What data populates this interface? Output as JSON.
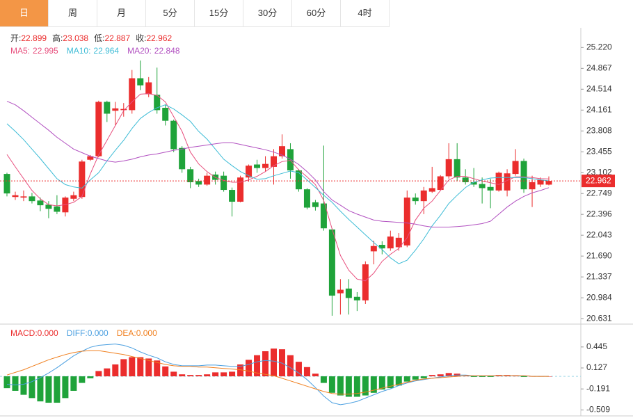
{
  "tabs": [
    "日",
    "周",
    "月",
    "5分",
    "15分",
    "30分",
    "60分",
    "4时"
  ],
  "active_tab": 0,
  "chart_data": [
    {
      "type": "candlestick",
      "ohlc_names": [
        "开:",
        "高:",
        "低:",
        "收:"
      ],
      "up_color": "#eb2d2d",
      "down_color": "#1fa33a",
      "open": [
        23.08,
        22.69,
        22.68,
        22.7,
        22.63,
        22.56,
        22.53,
        22.43,
        22.66,
        22.69,
        23.32,
        23.38,
        24.3,
        24.15,
        24.16,
        24.16,
        24.7,
        24.43,
        24.42,
        24.2,
        23.98,
        23.52,
        23.16,
        22.96,
        22.9,
        23.07,
        23.05,
        22.81,
        22.61,
        23.02,
        23.24,
        23.18,
        23.2,
        23.38,
        23.5,
        23.14,
        22.82,
        22.6,
        22.58,
        22.14,
        21.06,
        21.14,
        21.0,
        20.94,
        21.77,
        21.88,
        21.82,
        21.84,
        21.87,
        22.68,
        22.62,
        22.78,
        22.81,
        23.04,
        23.33,
        23.02,
        22.94,
        22.91,
        22.86,
        22.8,
        22.8,
        23.08,
        23.3,
        22.82,
        22.9,
        22.899
      ],
      "high": [
        23.1,
        22.78,
        22.8,
        22.76,
        22.68,
        22.62,
        22.72,
        22.7,
        22.78,
        23.32,
        23.4,
        24.32,
        24.32,
        24.3,
        24.28,
        24.84,
        25.0,
        24.72,
        24.88,
        24.26,
        24.0,
        23.55,
        23.2,
        23.0,
        23.1,
        23.12,
        23.12,
        22.85,
        23.05,
        23.24,
        23.32,
        23.38,
        23.5,
        23.75,
        23.6,
        23.16,
        22.84,
        22.64,
        23.56,
        22.16,
        21.3,
        21.3,
        21.08,
        21.6,
        21.95,
        21.94,
        22.12,
        22.08,
        22.8,
        22.75,
        22.86,
        23.2,
        23.06,
        23.6,
        23.6,
        23.16,
        23.18,
        23.02,
        23.0,
        23.12,
        23.16,
        23.5,
        23.34,
        23.05,
        23.02,
        23.038
      ],
      "low": [
        22.7,
        22.64,
        22.62,
        22.58,
        22.45,
        22.33,
        22.4,
        22.36,
        22.62,
        22.66,
        23.3,
        23.36,
        23.96,
        23.9,
        24.05,
        24.1,
        24.5,
        24.38,
        24.1,
        23.9,
        23.45,
        23.1,
        22.84,
        22.86,
        22.88,
        22.9,
        22.78,
        22.36,
        22.6,
        22.95,
        23.1,
        23.12,
        22.9,
        23.34,
        23.0,
        22.78,
        22.48,
        22.46,
        22.12,
        20.68,
        20.7,
        20.7,
        20.76,
        20.88,
        21.55,
        21.72,
        21.78,
        21.78,
        21.84,
        22.56,
        22.4,
        22.76,
        22.8,
        23.0,
        22.96,
        22.9,
        22.86,
        22.58,
        22.5,
        22.78,
        22.7,
        23.05,
        22.76,
        22.52,
        22.86,
        22.887
      ],
      "close": [
        22.75,
        22.72,
        22.7,
        22.62,
        22.55,
        22.49,
        22.44,
        22.68,
        22.72,
        23.29,
        23.38,
        24.3,
        24.1,
        24.19,
        24.18,
        24.7,
        24.58,
        24.63,
        24.16,
        23.98,
        23.5,
        23.16,
        22.94,
        22.9,
        23.05,
        22.98,
        22.81,
        22.61,
        23.02,
        23.22,
        23.18,
        23.25,
        23.38,
        23.55,
        23.14,
        22.82,
        22.51,
        22.52,
        22.16,
        21.02,
        21.12,
        20.98,
        20.94,
        21.55,
        21.86,
        21.82,
        22.02,
        22.0,
        22.68,
        22.62,
        22.8,
        22.84,
        23.04,
        23.33,
        23.02,
        22.94,
        22.9,
        22.84,
        22.8,
        23.1,
        23.09,
        23.3,
        22.82,
        22.94,
        22.98,
        22.962
      ],
      "series": [
        {
          "name": "MA5:",
          "color": "#e8507e",
          "values": [
            23.41,
            23.2,
            23.0,
            22.8,
            22.66,
            22.56,
            22.54,
            22.56,
            22.6,
            22.7,
            23.08,
            23.4,
            23.65,
            23.9,
            24.15,
            24.3,
            24.43,
            24.44,
            24.41,
            24.3,
            24.05,
            23.8,
            23.45,
            23.25,
            23.12,
            23.02,
            22.97,
            22.94,
            22.94,
            22.98,
            23.04,
            23.12,
            23.22,
            23.29,
            23.31,
            23.15,
            23.03,
            22.9,
            22.63,
            22.15,
            21.7,
            21.45,
            21.3,
            21.27,
            21.4,
            21.6,
            21.72,
            21.82,
            22.0,
            22.3,
            22.5,
            22.62,
            22.8,
            22.98,
            23.04,
            23.04,
            23.0,
            22.96,
            22.93,
            22.9,
            22.97,
            23.03,
            23.03,
            23.02,
            23.0,
            22.995
          ]
        },
        {
          "name": "MA10:",
          "color": "#3dbcd6",
          "values": [
            23.93,
            23.8,
            23.66,
            23.5,
            23.34,
            23.17,
            23.0,
            22.9,
            22.86,
            22.84,
            22.98,
            23.1,
            23.3,
            23.48,
            23.65,
            23.85,
            24.02,
            24.12,
            24.2,
            24.25,
            24.18,
            24.08,
            23.97,
            23.8,
            23.67,
            23.5,
            23.33,
            23.22,
            23.12,
            23.05,
            22.99,
            23.0,
            23.05,
            23.09,
            23.13,
            23.1,
            22.98,
            22.85,
            22.72,
            22.6,
            22.45,
            22.31,
            22.18,
            22.05,
            21.92,
            21.8,
            21.66,
            21.56,
            21.62,
            21.79,
            21.98,
            22.2,
            22.38,
            22.58,
            22.72,
            22.85,
            22.94,
            22.98,
            23.01,
            23.02,
            23.02,
            23.02,
            23.02,
            23.0,
            22.98,
            22.964
          ]
        },
        {
          "name": "MA20:",
          "color": "#b14fc0",
          "values": [
            24.31,
            24.25,
            24.15,
            24.04,
            23.93,
            23.82,
            23.7,
            23.6,
            23.5,
            23.44,
            23.38,
            23.34,
            23.3,
            23.28,
            23.3,
            23.33,
            23.37,
            23.4,
            23.42,
            23.45,
            23.48,
            23.5,
            23.53,
            23.55,
            23.57,
            23.59,
            23.61,
            23.61,
            23.58,
            23.55,
            23.52,
            23.49,
            23.45,
            23.4,
            23.33,
            23.24,
            23.12,
            22.98,
            22.78,
            22.64,
            22.55,
            22.46,
            22.4,
            22.35,
            22.3,
            22.28,
            22.27,
            22.26,
            22.25,
            22.23,
            22.2,
            22.18,
            22.18,
            22.18,
            22.19,
            22.2,
            22.22,
            22.24,
            22.28,
            22.4,
            22.52,
            22.62,
            22.7,
            22.76,
            22.8,
            22.848
          ]
        }
      ],
      "ylim": [
        20.55,
        25.53
      ],
      "yticks": [
        {
          "value": 25.22,
          "label": "25.220"
        },
        {
          "value": 24.867,
          "label": "24.867"
        },
        {
          "value": 24.514,
          "label": "24.514"
        },
        {
          "value": 24.161,
          "label": "24.161"
        },
        {
          "value": 23.808,
          "label": "23.808"
        },
        {
          "value": 23.455,
          "label": "23.455"
        },
        {
          "value": 23.102,
          "label": "23.102"
        },
        {
          "value": 22.749,
          "label": "22.749"
        },
        {
          "value": 22.396,
          "label": "22.396"
        },
        {
          "value": 22.043,
          "label": "22.043"
        },
        {
          "value": 21.69,
          "label": "21.690"
        },
        {
          "value": 21.337,
          "label": "21.337"
        },
        {
          "value": 20.984,
          "label": "20.984"
        },
        {
          "value": 20.631,
          "label": "20.631"
        }
      ]
    },
    {
      "type": "macd",
      "pos_color": "#eb2d2d",
      "neg_color": "#1fa33a",
      "series": [
        {
          "name": "MACD:",
          "type": "bar",
          "color": "#eb2d2d",
          "value_label": "0.000",
          "values": [
            -0.18,
            -0.22,
            -0.28,
            -0.33,
            -0.38,
            -0.4,
            -0.4,
            -0.33,
            -0.22,
            -0.1,
            -0.03,
            0.08,
            0.12,
            0.18,
            0.26,
            0.29,
            0.29,
            0.27,
            0.24,
            0.15,
            0.07,
            0.03,
            0.02,
            0.02,
            0.03,
            0.06,
            0.06,
            0.07,
            0.18,
            0.25,
            0.32,
            0.38,
            0.42,
            0.41,
            0.32,
            0.22,
            0.14,
            0.04,
            -0.1,
            -0.25,
            -0.29,
            -0.31,
            -0.31,
            -0.29,
            -0.25,
            -0.2,
            -0.18,
            -0.14,
            -0.08,
            -0.05,
            -0.03,
            0.02,
            0.03,
            0.05,
            0.04,
            0.01,
            -0.01,
            -0.01,
            -0.01,
            0.02,
            0.02,
            0.01,
            -0.01,
            0,
            0,
            0
          ]
        },
        {
          "name": "DIFF:",
          "type": "line",
          "color": "#4a9fe0",
          "value_label": "0.000",
          "values": [
            -0.12,
            -0.13,
            -0.12,
            -0.08,
            -0.02,
            0.05,
            0.13,
            0.22,
            0.31,
            0.38,
            0.44,
            0.47,
            0.48,
            0.49,
            0.47,
            0.43,
            0.37,
            0.32,
            0.28,
            0.22,
            0.18,
            0.16,
            0.16,
            0.16,
            0.17,
            0.17,
            0.16,
            0.15,
            0.15,
            0.18,
            0.22,
            0.24,
            0.23,
            0.2,
            0.13,
            0.05,
            -0.05,
            -0.17,
            -0.3,
            -0.4,
            -0.43,
            -0.41,
            -0.38,
            -0.33,
            -0.28,
            -0.23,
            -0.19,
            -0.14,
            -0.1,
            -0.07,
            -0.05,
            -0.03,
            -0.01,
            0.01,
            0.02,
            0.02,
            0.01,
            0.01,
            0.01,
            0.01,
            0.01,
            0.01,
            0.01,
            0,
            0,
            0
          ]
        },
        {
          "name": "DEA:",
          "type": "line",
          "color": "#f08020",
          "value_label": "0.000",
          "values": [
            0.02,
            0.06,
            0.1,
            0.15,
            0.2,
            0.25,
            0.29,
            0.33,
            0.36,
            0.38,
            0.39,
            0.39,
            0.37,
            0.35,
            0.33,
            0.3,
            0.27,
            0.24,
            0.21,
            0.18,
            0.16,
            0.15,
            0.15,
            0.14,
            0.14,
            0.13,
            0.12,
            0.11,
            0.1,
            0.08,
            0.05,
            0.03,
            0.01,
            -0.03,
            -0.07,
            -0.11,
            -0.15,
            -0.19,
            -0.23,
            -0.26,
            -0.27,
            -0.27,
            -0.26,
            -0.24,
            -0.21,
            -0.18,
            -0.15,
            -0.12,
            -0.09,
            -0.06,
            -0.04,
            -0.03,
            -0.02,
            -0.01,
            0,
            0.01,
            0.01,
            0.01,
            0.01,
            0.01,
            0.01,
            0.01,
            0.01,
            0,
            0,
            0
          ]
        }
      ],
      "ylim": [
        -0.6,
        0.77
      ],
      "yticks": [
        0.445,
        0.127,
        -0.191,
        -0.509
      ]
    }
  ]
}
